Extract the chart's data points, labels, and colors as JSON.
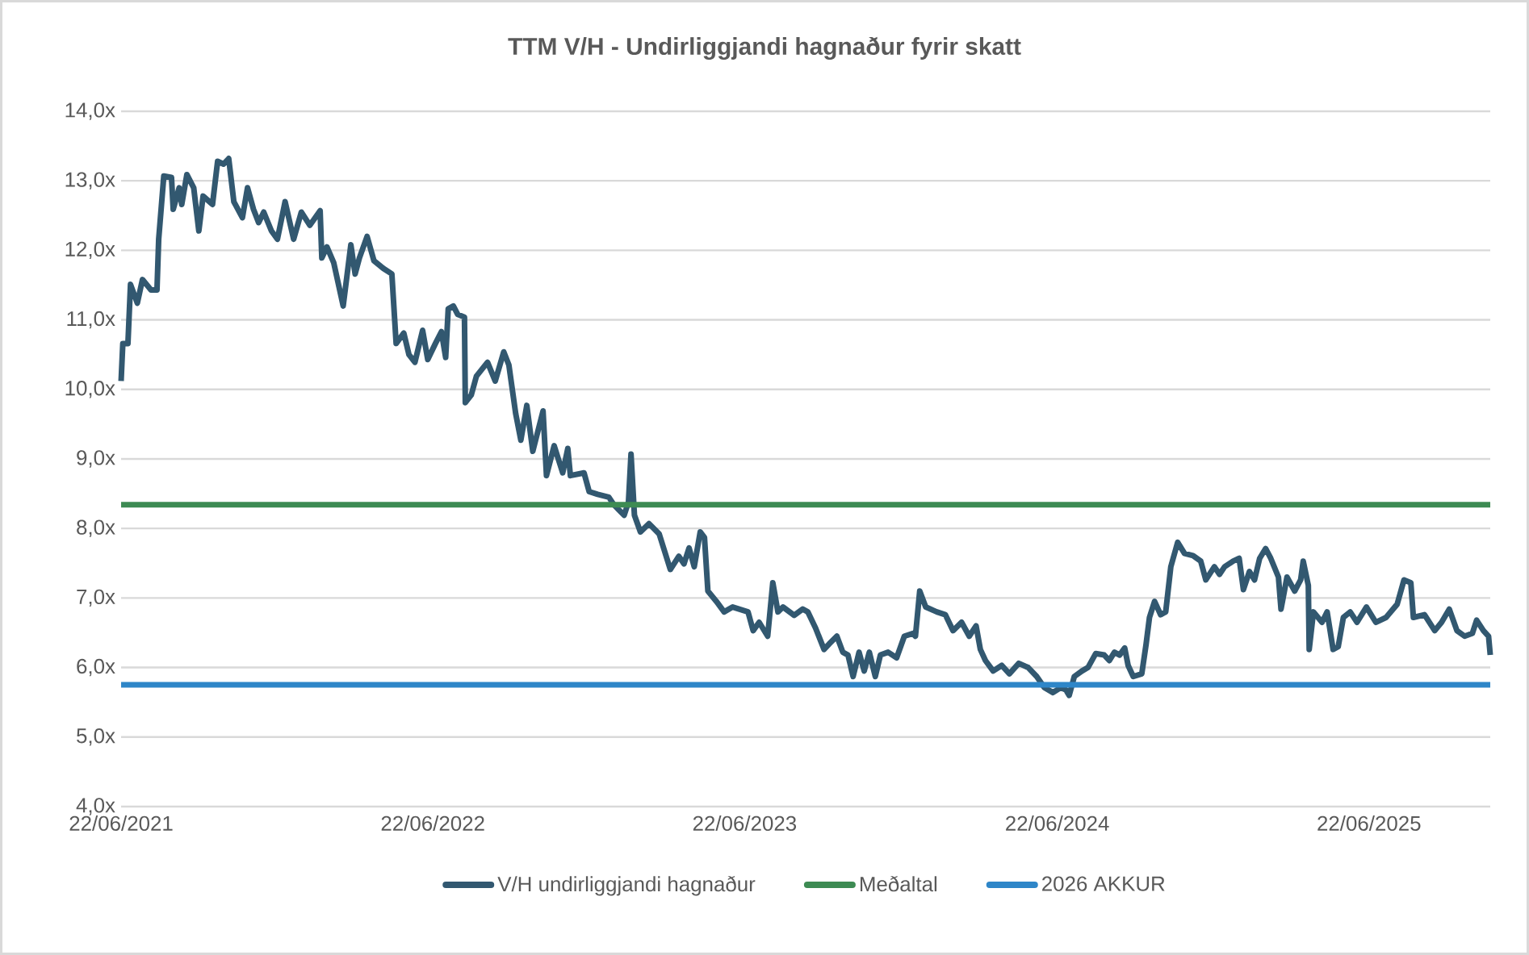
{
  "chart_data": {
    "type": "line",
    "title": "TTM V/H - Undirliggjandi hagnaður fyrir skatt",
    "xlim": [
      "2021-06-22",
      "2025-11-11"
    ],
    "xticks": [
      {
        "value": "2021-06-22",
        "label": "22/06/2021"
      },
      {
        "value": "2022-06-22",
        "label": "22/06/2022"
      },
      {
        "value": "2023-06-22",
        "label": "22/06/2023"
      },
      {
        "value": "2024-06-22",
        "label": "22/06/2024"
      },
      {
        "value": "2025-06-22",
        "label": "22/06/2025"
      }
    ],
    "ylim": [
      4,
      14
    ],
    "yticks": [
      {
        "value": 4,
        "label": "4,0x"
      },
      {
        "value": 5,
        "label": "5,0x"
      },
      {
        "value": 6,
        "label": "6,0x"
      },
      {
        "value": 7,
        "label": "7,0x"
      },
      {
        "value": 8,
        "label": "8,0x"
      },
      {
        "value": 9,
        "label": "9,0x"
      },
      {
        "value": 10,
        "label": "10,0x"
      },
      {
        "value": 11,
        "label": "11,0x"
      },
      {
        "value": 12,
        "label": "12,0x"
      },
      {
        "value": 13,
        "label": "13,0x"
      },
      {
        "value": 14,
        "label": "14,0x"
      }
    ],
    "grid": "y",
    "legend": "bottom",
    "ref_lines": [
      {
        "axis": "y",
        "value": 8.34,
        "label": "Meðaltal",
        "color": "#3d8b53"
      },
      {
        "axis": "y",
        "value": 5.75,
        "label": "2026 AKKUR",
        "color": "#2e86c8"
      }
    ],
    "series": [
      {
        "name": "V/H undirliggjandi hagnaður",
        "color": "#325870",
        "x": [
          "2021-06-22",
          "2021-06-24",
          "2021-06-30",
          "2021-07-03",
          "2021-07-11",
          "2021-07-17",
          "2021-07-27",
          "2021-08-03",
          "2021-08-05",
          "2021-08-11",
          "2021-08-20",
          "2021-08-22",
          "2021-08-29",
          "2021-09-01",
          "2021-09-07",
          "2021-09-15",
          "2021-09-21",
          "2021-09-26",
          "2021-10-07",
          "2021-10-13",
          "2021-10-20",
          "2021-10-26",
          "2021-11-01",
          "2021-11-11",
          "2021-11-17",
          "2021-11-24",
          "2021-11-30",
          "2021-12-06",
          "2021-12-15",
          "2021-12-22",
          "2021-12-31",
          "2022-01-10",
          "2022-01-19",
          "2022-01-29",
          "2022-02-10",
          "2022-02-12",
          "2022-02-18",
          "2022-02-26",
          "2022-03-09",
          "2022-03-18",
          "2022-03-23",
          "2022-03-28",
          "2022-04-06",
          "2022-04-14",
          "2022-04-25",
          "2022-05-05",
          "2022-05-10",
          "2022-05-19",
          "2022-05-25",
          "2022-06-01",
          "2022-06-10",
          "2022-06-16",
          "2022-06-25",
          "2022-07-02",
          "2022-07-07",
          "2022-07-10",
          "2022-07-16",
          "2022-07-21",
          "2022-07-29",
          "2022-07-30",
          "2022-08-06",
          "2022-08-12",
          "2022-08-25",
          "2022-09-03",
          "2022-09-13",
          "2022-09-19",
          "2022-09-27",
          "2022-10-03",
          "2022-10-10",
          "2022-10-17",
          "2022-10-29",
          "2022-11-02",
          "2022-11-11",
          "2022-11-21",
          "2022-11-27",
          "2022-11-30",
          "2022-12-16",
          "2022-12-22",
          "2023-01-01",
          "2023-01-14",
          "2023-01-20",
          "2023-02-01",
          "2023-02-06",
          "2023-02-09",
          "2023-02-13",
          "2023-02-20",
          "2023-03-02",
          "2023-03-14",
          "2023-03-27",
          "2023-04-06",
          "2023-04-12",
          "2023-04-18",
          "2023-04-24",
          "2023-05-01",
          "2023-05-06",
          "2023-05-10",
          "2023-05-20",
          "2023-05-29",
          "2023-06-08",
          "2023-06-26",
          "2023-07-02",
          "2023-07-09",
          "2023-07-19",
          "2023-07-25",
          "2023-07-31",
          "2023-08-06",
          "2023-08-19",
          "2023-08-29",
          "2023-09-04",
          "2023-09-13",
          "2023-09-23",
          "2023-09-29",
          "2023-10-08",
          "2023-10-15",
          "2023-10-21",
          "2023-10-27",
          "2023-11-03",
          "2023-11-09",
          "2023-11-15",
          "2023-11-22",
          "2023-11-28",
          "2023-12-07",
          "2023-12-17",
          "2023-12-26",
          "2024-01-05",
          "2024-01-08",
          "2024-01-13",
          "2024-01-20",
          "2024-02-02",
          "2024-02-12",
          "2024-02-21",
          "2024-03-02",
          "2024-03-11",
          "2024-03-19",
          "2024-03-24",
          "2024-03-30",
          "2024-04-08",
          "2024-04-18",
          "2024-04-27",
          "2024-05-08",
          "2024-05-19",
          "2024-05-29",
          "2024-06-07",
          "2024-06-17",
          "2024-06-26",
          "2024-07-02",
          "2024-07-06",
          "2024-07-12",
          "2024-07-21",
          "2024-07-28",
          "2024-08-06",
          "2024-08-16",
          "2024-08-22",
          "2024-08-28",
          "2024-09-03",
          "2024-09-09",
          "2024-09-13",
          "2024-09-19",
          "2024-09-29",
          "2024-10-04",
          "2024-10-08",
          "2024-10-14",
          "2024-10-21",
          "2024-10-27",
          "2024-11-02",
          "2024-11-10",
          "2024-11-18",
          "2024-11-28",
          "2024-12-07",
          "2024-12-13",
          "2024-12-23",
          "2024-12-29",
          "2025-01-04",
          "2025-01-14",
          "2025-01-21",
          "2025-01-26",
          "2025-02-02",
          "2025-02-08",
          "2025-02-14",
          "2025-02-21",
          "2025-02-27",
          "2025-03-08",
          "2025-03-11",
          "2025-03-18",
          "2025-03-27",
          "2025-04-03",
          "2025-04-06",
          "2025-04-12",
          "2025-04-13",
          "2025-04-18",
          "2025-04-28",
          "2025-05-04",
          "2025-05-11",
          "2025-05-17",
          "2025-05-23",
          "2025-05-31",
          "2025-06-08",
          "2025-06-19",
          "2025-06-30",
          "2025-07-12",
          "2025-07-25",
          "2025-08-02",
          "2025-08-10",
          "2025-08-13",
          "2025-08-26",
          "2025-09-07",
          "2025-09-15",
          "2025-09-24",
          "2025-10-03",
          "2025-10-12",
          "2025-10-21",
          "2025-10-26",
          "2025-11-03",
          "2025-11-09",
          "2025-11-11"
        ],
        "values": [
          10.12,
          10.66,
          10.66,
          11.51,
          11.24,
          11.58,
          11.43,
          11.43,
          12.16,
          13.07,
          13.05,
          12.59,
          12.9,
          12.66,
          13.09,
          12.9,
          12.28,
          12.78,
          12.66,
          13.28,
          13.24,
          13.32,
          12.7,
          12.47,
          12.9,
          12.59,
          12.4,
          12.55,
          12.28,
          12.16,
          12.7,
          12.16,
          12.55,
          12.36,
          12.57,
          11.89,
          12.05,
          11.82,
          11.2,
          12.08,
          11.66,
          11.89,
          12.2,
          11.85,
          11.74,
          11.66,
          10.66,
          10.81,
          10.5,
          10.39,
          10.85,
          10.43,
          10.66,
          10.83,
          10.46,
          11.16,
          11.2,
          11.08,
          11.04,
          9.81,
          9.92,
          10.19,
          10.39,
          10.12,
          10.54,
          10.35,
          9.65,
          9.27,
          9.77,
          9.11,
          9.69,
          8.76,
          9.19,
          8.8,
          9.15,
          8.76,
          8.8,
          8.53,
          8.49,
          8.45,
          8.34,
          8.19,
          8.38,
          9.07,
          8.19,
          7.95,
          8.07,
          7.92,
          7.41,
          7.6,
          7.49,
          7.72,
          7.45,
          7.95,
          7.87,
          7.1,
          6.95,
          6.8,
          6.87,
          6.8,
          6.53,
          6.65,
          6.45,
          7.22,
          6.8,
          6.87,
          6.75,
          6.84,
          6.8,
          6.57,
          6.26,
          6.34,
          6.45,
          6.22,
          6.18,
          5.87,
          6.22,
          5.95,
          6.22,
          5.87,
          6.18,
          6.22,
          6.14,
          6.45,
          6.49,
          6.45,
          7.1,
          6.87,
          6.8,
          6.76,
          6.53,
          6.65,
          6.45,
          6.6,
          6.26,
          6.1,
          5.95,
          6.03,
          5.91,
          6.06,
          6.0,
          5.87,
          5.71,
          5.64,
          5.71,
          5.68,
          5.6,
          5.87,
          5.95,
          6.0,
          6.2,
          6.18,
          6.1,
          6.22,
          6.18,
          6.28,
          6.03,
          5.87,
          5.91,
          6.33,
          6.72,
          6.95,
          6.76,
          6.8,
          7.45,
          7.8,
          7.64,
          7.61,
          7.53,
          7.26,
          7.45,
          7.34,
          7.45,
          7.53,
          7.57,
          7.12,
          7.38,
          7.26,
          7.57,
          7.71,
          7.57,
          7.3,
          6.84,
          7.3,
          7.1,
          7.26,
          7.53,
          7.18,
          6.26,
          6.8,
          6.65,
          6.8,
          6.26,
          6.3,
          6.72,
          6.8,
          6.65,
          6.87,
          6.65,
          6.72,
          6.91,
          7.26,
          7.22,
          6.72,
          6.76,
          6.53,
          6.65,
          6.84,
          6.53,
          6.45,
          6.49,
          6.68,
          6.53,
          6.45,
          6.18
        ]
      }
    ]
  }
}
